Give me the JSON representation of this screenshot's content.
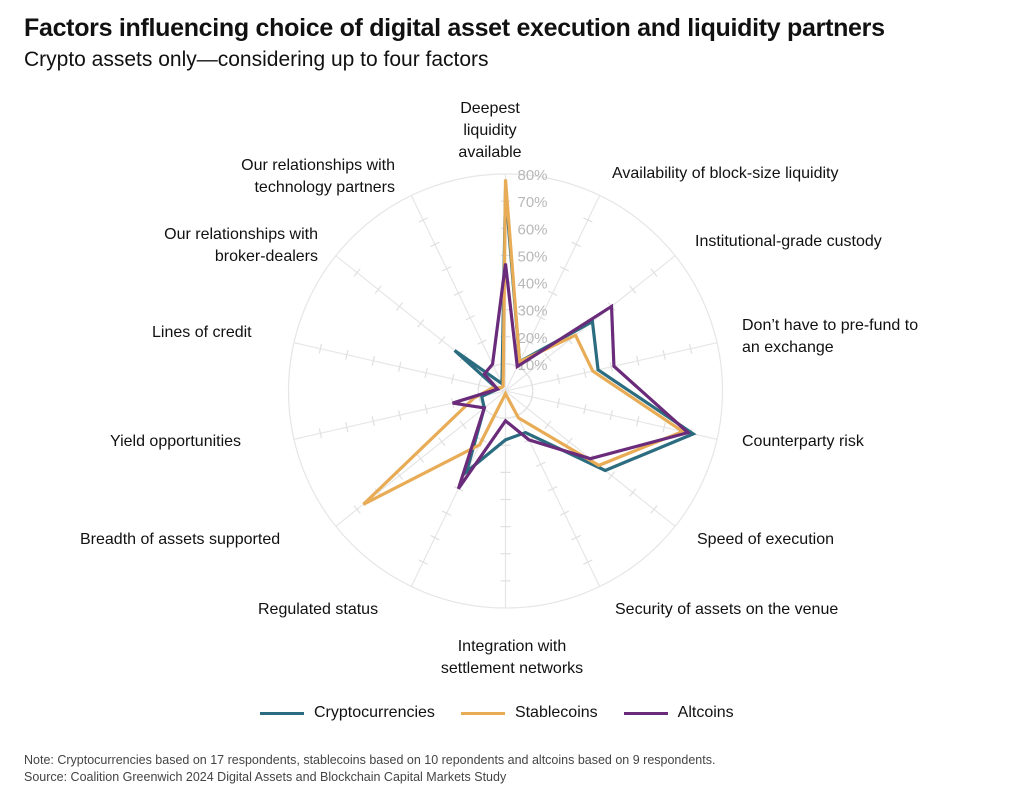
{
  "chart_data": {
    "type": "radar",
    "title": "Factors influencing choice of digital asset execution and liquidity partners",
    "subtitle": "Crypto assets only—considering up to four factors",
    "categories": [
      "Deepest liquidity available",
      "Availability of block-size liquidity",
      "Institutional-grade custody",
      "Don’t have to pre-fund to an exchange",
      "Counterparty risk",
      "Speed of execution",
      "Security of assets on the venue",
      "Integration with settlement networks",
      "Regulated status",
      "Breadth of assets supported",
      "Yield opportunities",
      "Lines of credit",
      "Our relationships with broker-dealers",
      "Our relationships with technology partners"
    ],
    "rlim": [
      0,
      80
    ],
    "rticks": [
      "10%",
      "20%",
      "30%",
      "40%",
      "50%",
      "60%",
      "70%",
      "80%"
    ],
    "series": [
      {
        "name": "Cryptocurrencies",
        "color": "#2b6c80",
        "values": [
          74,
          12,
          41,
          35,
          71,
          47,
          17,
          18,
          33,
          10,
          9,
          3,
          24,
          3
        ]
      },
      {
        "name": "Stablecoins",
        "color": "#e8ac57",
        "values": [
          78,
          12,
          33,
          33,
          67,
          44,
          11,
          1,
          22,
          67,
          12,
          5,
          2,
          2
        ]
      },
      {
        "name": "Altcoins",
        "color": "#6a2b7b",
        "values": [
          47,
          10,
          50,
          41,
          69,
          40,
          20,
          11,
          40,
          10,
          20,
          3,
          10,
          11
        ]
      }
    ],
    "legend_position": "bottom"
  },
  "note": "Note: Cryptocurrencies based on 17 respondents, stablecoins based on 10 repondents and altcoins based on 9 respondents.",
  "source": "Source: Coalition Greenwich 2024 Digital Assets and Blockchain Capital Markets Study"
}
